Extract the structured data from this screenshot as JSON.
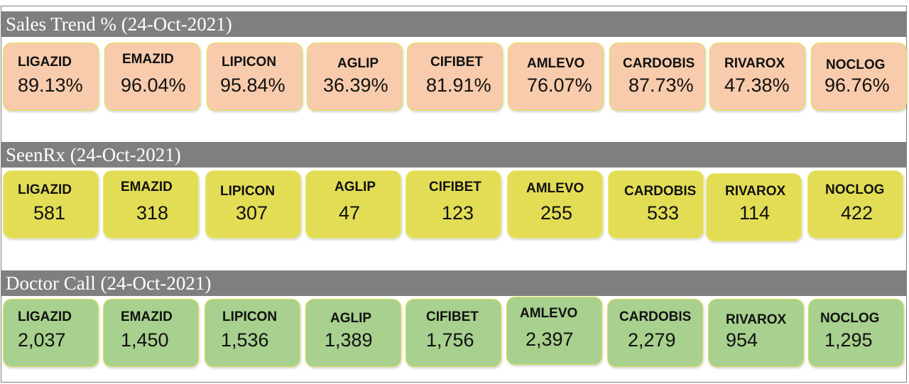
{
  "sections": [
    {
      "title": "Sales Trend % (24-Oct-2021)",
      "cards": [
        {
          "name": "LIGAZID",
          "value": "89.13%"
        },
        {
          "name": "EMAZID",
          "value": "96.04%"
        },
        {
          "name": "LIPICON",
          "value": "95.84%"
        },
        {
          "name": "AGLIP",
          "value": "36.39%"
        },
        {
          "name": "CIFIBET",
          "value": "81.91%"
        },
        {
          "name": "AMLEVO",
          "value": "76.07%"
        },
        {
          "name": "CARDOBIS",
          "value": "87.73%"
        },
        {
          "name": "RIVAROX",
          "value": "47.38%"
        },
        {
          "name": "NOCLOG",
          "value": "96.76%"
        }
      ]
    },
    {
      "title": "SeenRx (24-Oct-2021)",
      "cards": [
        {
          "name": "LIGAZID",
          "value": "581"
        },
        {
          "name": "EMAZID",
          "value": "318"
        },
        {
          "name": "LIPICON",
          "value": "307"
        },
        {
          "name": "AGLIP",
          "value": "47"
        },
        {
          "name": "CIFIBET",
          "value": "123"
        },
        {
          "name": "AMLEVO",
          "value": "255"
        },
        {
          "name": "CARDOBIS",
          "value": "533"
        },
        {
          "name": "RIVAROX",
          "value": "114"
        },
        {
          "name": "NOCLOG",
          "value": "422"
        }
      ]
    },
    {
      "title": "Doctor Call (24-Oct-2021)",
      "cards": [
        {
          "name": "LIGAZID",
          "value": "2,037"
        },
        {
          "name": "EMAZID",
          "value": "1,450"
        },
        {
          "name": "LIPICON",
          "value": "1,536"
        },
        {
          "name": "AGLIP",
          "value": "1,389"
        },
        {
          "name": "CIFIBET",
          "value": "1,756"
        },
        {
          "name": "AMLEVO",
          "value": "2,397"
        },
        {
          "name": "CARDOBIS",
          "value": "2,279"
        },
        {
          "name": "RIVAROX",
          "value": "954"
        },
        {
          "name": "NOCLOG",
          "value": "1,295"
        }
      ]
    }
  ],
  "colors": {
    "header_bar": "#7f7f7f",
    "sales_card": "#f7cbac",
    "seenrx_card": "#e2dd55",
    "doctor_call_card": "#a8d08e"
  }
}
